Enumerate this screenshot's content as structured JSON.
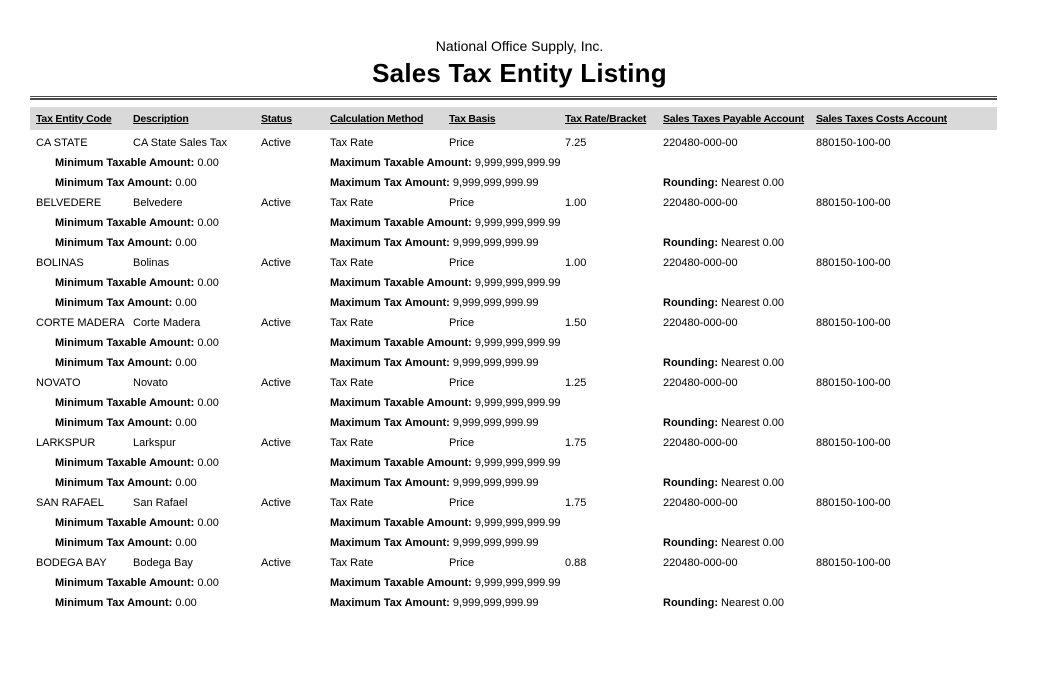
{
  "report": {
    "company": "National Office Supply, Inc.",
    "title": "Sales Tax Entity Listing"
  },
  "colors": {
    "header_bg": "#d9d9d9",
    "rule": "#4a4a4a",
    "text": "#000000"
  },
  "table": {
    "columns": [
      "Tax Entity Code",
      "Description",
      "Status",
      "Calculation Method",
      "Tax Basis",
      "Tax Rate/Bracket",
      "Sales Taxes Payable Account",
      "Sales Taxes Costs Account"
    ],
    "detail_labels": {
      "min_taxable": "Minimum Taxable Amount:",
      "max_taxable": "Maximum Taxable Amount:",
      "min_tax": "Minimum Tax Amount:",
      "max_tax": "Maximum Tax Amount:",
      "rounding": "Rounding:"
    },
    "rows": [
      {
        "code": "CA STATE",
        "description": "CA State Sales Tax",
        "status": "Active",
        "calc_method": "Tax Rate",
        "tax_basis": "Price",
        "rate": "7.25",
        "payable_account": "220480-000-00",
        "costs_account": "880150-100-00",
        "min_taxable": "0.00",
        "max_taxable": "9,999,999,999.99",
        "min_tax": "0.00",
        "max_tax": "9,999,999,999.99",
        "rounding": "Nearest 0.00"
      },
      {
        "code": "BELVEDERE",
        "description": "Belvedere",
        "status": "Active",
        "calc_method": "Tax Rate",
        "tax_basis": "Price",
        "rate": "1.00",
        "payable_account": "220480-000-00",
        "costs_account": "880150-100-00",
        "min_taxable": "0.00",
        "max_taxable": "9,999,999,999.99",
        "min_tax": "0.00",
        "max_tax": "9,999,999,999.99",
        "rounding": "Nearest 0.00"
      },
      {
        "code": "BOLINAS",
        "description": "Bolinas",
        "status": "Active",
        "calc_method": "Tax Rate",
        "tax_basis": "Price",
        "rate": "1.00",
        "payable_account": "220480-000-00",
        "costs_account": "880150-100-00",
        "min_taxable": "0.00",
        "max_taxable": "9,999,999,999.99",
        "min_tax": "0.00",
        "max_tax": "9,999,999,999.99",
        "rounding": "Nearest 0.00"
      },
      {
        "code": "CORTE MADERA",
        "description": "Corte Madera",
        "status": "Active",
        "calc_method": "Tax Rate",
        "tax_basis": "Price",
        "rate": "1.50",
        "payable_account": "220480-000-00",
        "costs_account": "880150-100-00",
        "min_taxable": "0.00",
        "max_taxable": "9,999,999,999.99",
        "min_tax": "0.00",
        "max_tax": "9,999,999,999.99",
        "rounding": "Nearest 0.00"
      },
      {
        "code": "NOVATO",
        "description": "Novato",
        "status": "Active",
        "calc_method": "Tax Rate",
        "tax_basis": "Price",
        "rate": "1.25",
        "payable_account": "220480-000-00",
        "costs_account": "880150-100-00",
        "min_taxable": "0.00",
        "max_taxable": "9,999,999,999.99",
        "min_tax": "0.00",
        "max_tax": "9,999,999,999.99",
        "rounding": "Nearest 0.00"
      },
      {
        "code": "LARKSPUR",
        "description": "Larkspur",
        "status": "Active",
        "calc_method": "Tax Rate",
        "tax_basis": "Price",
        "rate": "1.75",
        "payable_account": "220480-000-00",
        "costs_account": "880150-100-00",
        "min_taxable": "0.00",
        "max_taxable": "9,999,999,999.99",
        "min_tax": "0.00",
        "max_tax": "9,999,999,999.99",
        "rounding": "Nearest 0.00"
      },
      {
        "code": "SAN RAFAEL",
        "description": "San Rafael",
        "status": "Active",
        "calc_method": "Tax Rate",
        "tax_basis": "Price",
        "rate": "1.75",
        "payable_account": "220480-000-00",
        "costs_account": "880150-100-00",
        "min_taxable": "0.00",
        "max_taxable": "9,999,999,999.99",
        "min_tax": "0.00",
        "max_tax": "9,999,999,999.99",
        "rounding": "Nearest 0.00"
      },
      {
        "code": "BODEGA BAY",
        "description": "Bodega Bay",
        "status": "Active",
        "calc_method": "Tax Rate",
        "tax_basis": "Price",
        "rate": "0.88",
        "payable_account": "220480-000-00",
        "costs_account": "880150-100-00",
        "min_taxable": "0.00",
        "max_taxable": "9,999,999,999.99",
        "min_tax": "0.00",
        "max_tax": "9,999,999,999.99",
        "rounding": "Nearest 0.00"
      }
    ]
  }
}
